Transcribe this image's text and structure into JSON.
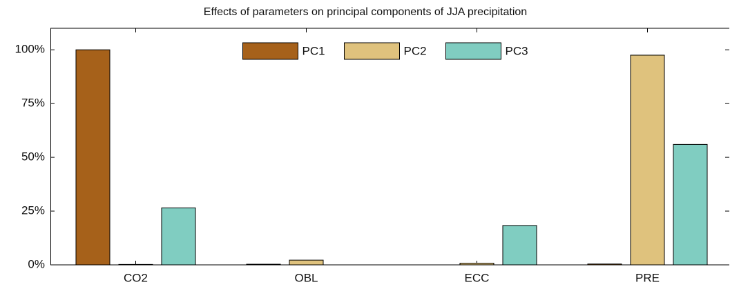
{
  "chart_data": {
    "type": "bar",
    "title": "Effects of parameters on principal components of JJA precipitation",
    "categories": [
      "CO2",
      "OBL",
      "ECC",
      "PRE"
    ],
    "series": [
      {
        "name": "PC1",
        "color": "#a6611a",
        "values": [
          100,
          0.3,
          0,
          0.4
        ]
      },
      {
        "name": "PC2",
        "color": "#dfc27d",
        "values": [
          0.2,
          2.2,
          0.8,
          97.5
        ]
      },
      {
        "name": "PC3",
        "color": "#80cdc1",
        "values": [
          26.5,
          0,
          18.3,
          56
        ]
      }
    ],
    "ylim": [
      0,
      110
    ],
    "yticks": [
      {
        "value": 0,
        "label": "0%"
      },
      {
        "value": 25,
        "label": "25%"
      },
      {
        "value": 50,
        "label": "50%"
      },
      {
        "value": 75,
        "label": "75%"
      },
      {
        "value": 100,
        "label": "100%"
      }
    ],
    "legend": "upper center"
  }
}
